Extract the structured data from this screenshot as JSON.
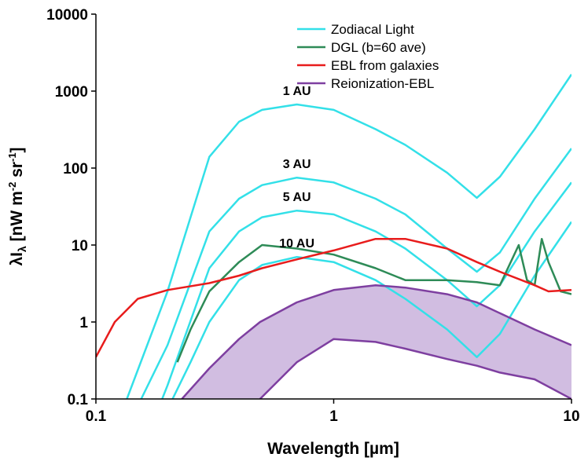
{
  "chart_data": {
    "type": "line",
    "x_label": "Wavelength [µm]",
    "y_label": {
      "main": "λI",
      "sub": "λ",
      "unit1": " [nW m",
      "sup1": "-2",
      "unit2": " sr",
      "sup2": "-1",
      "end": "]"
    },
    "xlog": true,
    "ylog": true,
    "xlim": [
      0.1,
      10
    ],
    "xticks": [
      0.1,
      1,
      10
    ],
    "ylim": [
      0.1,
      10000
    ],
    "yticks": [
      0.1,
      1,
      10,
      100,
      1000,
      10000
    ],
    "legend": "upper right",
    "series": [
      {
        "name": "Zodiacal Light",
        "color": "#33e0e8",
        "curves": [
          {
            "label": "1 AU",
            "x": [
              0.135,
              0.2,
              0.3,
              0.4,
              0.5,
              0.7,
              1,
              1.5,
              2,
              3,
              4,
              5,
              7,
              10
            ],
            "values": [
              0.1,
              2.5,
              140,
              400,
              570,
              670,
              570,
              320,
              200,
              87,
              41,
              77,
              320,
              1650
            ]
          },
          {
            "label": "3 AU",
            "x": [
              0.155,
              0.2,
              0.3,
              0.4,
              0.5,
              0.7,
              1,
              1.5,
              2,
              3,
              4,
              5,
              7,
              10
            ],
            "values": [
              0.1,
              0.5,
              15,
              40,
              60,
              75,
              65,
              40,
              25,
              9,
              4.5,
              8,
              40,
              180
            ]
          },
          {
            "label": "5 AU",
            "x": [
              0.19,
              0.2,
              0.3,
              0.4,
              0.5,
              0.7,
              1,
              1.5,
              2,
              3,
              4,
              5,
              7,
              10
            ],
            "values": [
              0.1,
              0.15,
              5,
              15,
              23,
              28,
              25,
              15,
              9,
              3.5,
              1.6,
              3,
              15,
              65
            ]
          },
          {
            "label": "10 AU",
            "x": [
              0.21,
              0.25,
              0.3,
              0.4,
              0.5,
              0.7,
              1,
              1.5,
              2,
              3,
              4,
              5,
              7,
              10
            ],
            "values": [
              0.1,
              0.3,
              1,
              3.5,
              5.5,
              7,
              6,
              3.5,
              2,
              0.8,
              0.35,
              0.7,
              4,
              20
            ]
          }
        ]
      },
      {
        "name": "DGL (b=60 ave)",
        "color": "#2e8b57",
        "x": [
          0.22,
          0.25,
          0.3,
          0.4,
          0.5,
          0.7,
          1,
          1.5,
          2,
          3,
          4,
          5,
          6,
          6.5,
          7,
          7.5,
          8,
          9,
          10
        ],
        "values": [
          0.3,
          0.8,
          2.5,
          6,
          10,
          9,
          7.5,
          5,
          3.5,
          3.5,
          3.3,
          3,
          10,
          3.5,
          3,
          12,
          6,
          2.5,
          2.3
        ]
      },
      {
        "name": "EBL from galaxies",
        "color": "#e81c1c",
        "x": [
          0.1,
          0.12,
          0.15,
          0.2,
          0.3,
          0.4,
          0.5,
          0.7,
          1,
          1.5,
          2,
          3,
          4,
          5,
          7,
          8,
          10
        ],
        "values": [
          0.35,
          1,
          2,
          2.6,
          3.2,
          4,
          5,
          6.5,
          8.5,
          12,
          12,
          9,
          6,
          4.5,
          3,
          2.5,
          2.6
        ]
      },
      {
        "name": "Reionization-EBL",
        "color": "#7e3fa0",
        "fill": "#c9b2dc",
        "x": [
          0.23,
          0.3,
          0.4,
          0.49,
          0.7,
          1,
          1.5,
          2,
          3,
          4,
          5,
          7,
          10
        ],
        "upper": [
          0.1,
          0.25,
          0.6,
          1,
          1.8,
          2.6,
          3,
          2.8,
          2.3,
          1.8,
          1.3,
          0.8,
          0.5
        ],
        "lower": [
          null,
          null,
          null,
          0.1,
          0.3,
          0.6,
          0.55,
          0.45,
          0.33,
          0.27,
          0.22,
          0.18,
          0.1
        ]
      }
    ]
  }
}
